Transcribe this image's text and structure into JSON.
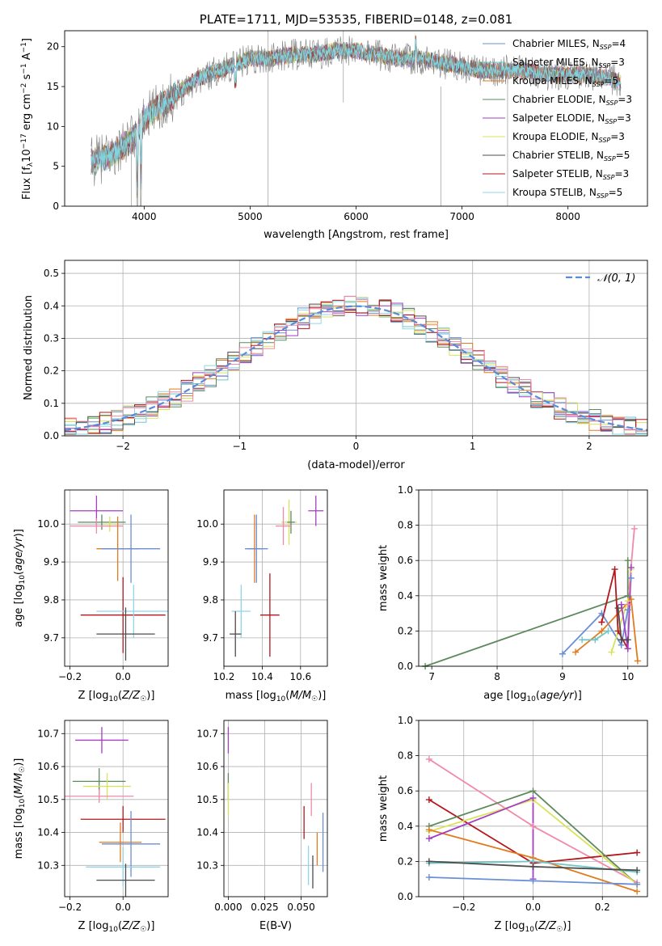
{
  "chart_data": [
    {
      "id": "spectrum",
      "type": "line",
      "title": "PLATE=1711, MJD=53535, FIBERID=0148, z=0.081",
      "xlabel": "wavelength [Angstrom, rest frame]",
      "ylabel": "Flux [f_λ10^-17 erg cm^-2 s^-1 A^-1]",
      "xlim": [
        3250,
        8750
      ],
      "ylim": [
        0,
        22
      ],
      "xticks": [
        4000,
        5000,
        6000,
        7000,
        8000
      ],
      "yticks": [
        0,
        5,
        10,
        15,
        20
      ],
      "grid": false,
      "legend_placement": "right",
      "data_color": "#808080",
      "model_color": "#7fd6e0",
      "continuum": {
        "x": [
          3500,
          3600,
          3700,
          3800,
          3900,
          4000,
          4100,
          4200,
          4300,
          4400,
          4500,
          4600,
          4800,
          5000,
          5200,
          5400,
          5600,
          5800,
          6000,
          6200,
          6400,
          6600,
          6800,
          7000,
          7200,
          7400,
          7600,
          7800,
          8000,
          8200,
          8400,
          8500
        ],
        "y": [
          5.5,
          6,
          6.5,
          7.5,
          8.5,
          11,
          12,
          13,
          14,
          15,
          16,
          16.5,
          17.5,
          18.5,
          18.5,
          19,
          19,
          19.5,
          19.5,
          19,
          18.5,
          18.5,
          18,
          17.5,
          17,
          17,
          17,
          16.5,
          16.5,
          16.5,
          16,
          15.5
        ]
      },
      "legend": [
        {
          "label": "Chabrier MILES, N",
          "sub": "SSP",
          "tail": "=4",
          "color": "#6a8fd6"
        },
        {
          "label": "Salpeter MILES, N",
          "sub": "SSP",
          "tail": "=3",
          "color": "#6fc7c7"
        },
        {
          "label": "Kroupa MILES, N",
          "sub": "SSP",
          "tail": "=5",
          "color": "#e07b1e"
        },
        {
          "label": "Chabrier ELODIE, N",
          "sub": "SSP",
          "tail": "=3",
          "color": "#5e8a5e"
        },
        {
          "label": "Salpeter ELODIE, N",
          "sub": "SSP",
          "tail": "=3",
          "color": "#a23fc2"
        },
        {
          "label": "Kroupa ELODIE, N",
          "sub": "SSP",
          "tail": "=3",
          "color": "#d9e35a"
        },
        {
          "label": "Chabrier STELIB, N",
          "sub": "SSP",
          "tail": "=5",
          "color": "#4d4d4d"
        },
        {
          "label": "Salpeter STELIB, N",
          "sub": "SSP",
          "tail": "=3",
          "color": "#b3171b"
        },
        {
          "label": "Kroupa STELIB, N",
          "sub": "SSP",
          "tail": "=5",
          "color": "#8fd5ea"
        }
      ]
    },
    {
      "id": "residuals",
      "type": "line",
      "xlabel": "(data-model)/error",
      "ylabel": "Normed distribution",
      "xlim": [
        -2.5,
        2.5
      ],
      "ylim": [
        0,
        0.54
      ],
      "xticks": [
        -2,
        -1,
        0,
        1,
        2
      ],
      "yticks": [
        0.0,
        0.1,
        0.2,
        0.3,
        0.4,
        0.5
      ],
      "grid": true,
      "legend_placement": "top-right",
      "gaussian_label": "𝒩(0, 1)",
      "gaussian_color": "#5b8bd8",
      "histogram_colors": [
        "#6a8fd6",
        "#6fc7c7",
        "#e07b1e",
        "#5e8a5e",
        "#a23fc2",
        "#d9e35a",
        "#4d4d4d",
        "#b3171b",
        "#8fd5ea",
        "#f08aa8"
      ]
    },
    {
      "id": "age-vs-Z",
      "type": "scatter",
      "xlabel": "Z [log10(Z/Z☉)]",
      "ylabel": "age  [log10(age/yr)]",
      "xlim": [
        -0.22,
        0.17
      ],
      "ylim": [
        9.625,
        10.09
      ],
      "xticks": [
        -0.2,
        0.0
      ],
      "yticks": [
        9.7,
        9.8,
        9.9,
        10.0
      ],
      "grid": true,
      "points": [
        {
          "x": -0.1,
          "y": 10.035,
          "xe": 0.1,
          "ye": 0.04,
          "color": "#a23fc2"
        },
        {
          "x": -0.08,
          "y": 10.005,
          "xe": 0.09,
          "ye": 0.02,
          "color": "#5e8a5e"
        },
        {
          "x": -0.05,
          "y": 10.0,
          "xe": 0.02,
          "ye": 0.02,
          "color": "#d9e35a"
        },
        {
          "x": -0.1,
          "y": 9.995,
          "xe": 0.1,
          "ye": 0.02,
          "color": "#f08aa8"
        },
        {
          "x": -0.02,
          "y": 9.935,
          "xe": 0.08,
          "ye": 0.085,
          "color": "#e07b1e"
        },
        {
          "x": 0.03,
          "y": 9.935,
          "xe": 0.11,
          "ye": 0.09,
          "color": "#6a8fd6"
        },
        {
          "x": 0.0,
          "y": 9.76,
          "xe": 0.16,
          "ye": 0.1,
          "color": "#b3171b"
        },
        {
          "x": 0.04,
          "y": 9.77,
          "xe": 0.14,
          "ye": 0.07,
          "color": "#8fd5ea"
        },
        {
          "x": 0.01,
          "y": 9.71,
          "xe": 0.11,
          "ye": 0.07,
          "color": "#4d4d4d"
        }
      ]
    },
    {
      "id": "age-vs-mass",
      "type": "scatter",
      "xlabel": "mass [log10(M/M☉)]",
      "ylabel": "",
      "xlim": [
        10.2,
        10.74
      ],
      "ylim": [
        9.625,
        10.09
      ],
      "xticks": [
        10.2,
        10.4,
        10.6
      ],
      "yticks": [
        9.7,
        9.8,
        9.9,
        10.0
      ],
      "grid": true,
      "points": [
        {
          "x": 10.68,
          "y": 10.035,
          "xe": 0.04,
          "ye": 0.04,
          "color": "#a23fc2"
        },
        {
          "x": 10.54,
          "y": 10.005,
          "xe": 0.04,
          "ye": 0.06,
          "color": "#d9e35a"
        },
        {
          "x": 10.55,
          "y": 10.005,
          "xe": 0.02,
          "ye": 0.03,
          "color": "#5e8a5e"
        },
        {
          "x": 10.51,
          "y": 9.995,
          "xe": 0.04,
          "ye": 0.05,
          "color": "#f08aa8"
        },
        {
          "x": 10.36,
          "y": 9.935,
          "xe": 0.04,
          "ye": 0.09,
          "color": "#e07b1e"
        },
        {
          "x": 10.37,
          "y": 9.935,
          "xe": 0.06,
          "ye": 0.09,
          "color": "#6a8fd6"
        },
        {
          "x": 10.44,
          "y": 9.76,
          "xe": 0.05,
          "ye": 0.11,
          "color": "#b3171b"
        },
        {
          "x": 10.29,
          "y": 9.77,
          "xe": 0.05,
          "ye": 0.07,
          "color": "#8fd5ea"
        },
        {
          "x": 10.26,
          "y": 9.71,
          "xe": 0.03,
          "ye": 0.06,
          "color": "#4d4d4d"
        }
      ]
    },
    {
      "id": "weight-vs-age",
      "type": "line",
      "xlabel": "age  [log10(age/yr)]",
      "ylabel": "mass weight",
      "xlim": [
        6.8,
        10.3
      ],
      "ylim": [
        0,
        1
      ],
      "xticks": [
        7,
        8,
        9,
        10
      ],
      "yticks": [
        0.0,
        0.2,
        0.4,
        0.6,
        0.8,
        1.0
      ],
      "grid": true,
      "series": [
        {
          "color": "#5e8a5e",
          "x": [
            6.9,
            10.0,
            10.0
          ],
          "y": [
            0.0,
            0.4,
            0.6
          ]
        },
        {
          "color": "#6a8fd6",
          "x": [
            9.0,
            9.6,
            9.9,
            10.0,
            10.05
          ],
          "y": [
            0.07,
            0.3,
            0.12,
            0.32,
            0.5
          ]
        },
        {
          "color": "#e07b1e",
          "x": [
            9.2,
            9.6,
            10.05,
            10.15
          ],
          "y": [
            0.08,
            0.2,
            0.38,
            0.03
          ]
        },
        {
          "color": "#6fc7c7",
          "x": [
            9.3,
            9.5,
            9.7
          ],
          "y": [
            0.15,
            0.15,
            0.2
          ]
        },
        {
          "color": "#b3171b",
          "x": [
            9.6,
            9.8,
            9.85,
            10.0
          ],
          "y": [
            0.25,
            0.55,
            0.2,
            0.1
          ]
        },
        {
          "color": "#d9e35a",
          "x": [
            9.75,
            10.0,
            10.05
          ],
          "y": [
            0.08,
            0.37,
            0.55
          ]
        },
        {
          "color": "#a23fc2",
          "x": [
            9.9,
            10.0,
            10.05
          ],
          "y": [
            0.35,
            0.1,
            0.56
          ]
        },
        {
          "color": "#4d4d4d",
          "x": [
            9.85,
            9.9,
            10.0
          ],
          "y": [
            0.33,
            0.15,
            0.15
          ]
        },
        {
          "color": "#f08aa8",
          "x": [
            10.0,
            10.1
          ],
          "y": [
            0.35,
            0.78
          ]
        }
      ]
    },
    {
      "id": "mass-vs-Z",
      "type": "scatter",
      "xlabel": "Z [log10(Z/Z☉)]",
      "ylabel": "mass [log10(M/M☉)]",
      "xlim": [
        -0.22,
        0.17
      ],
      "ylim": [
        10.205,
        10.74
      ],
      "xticks": [
        -0.2,
        0.0
      ],
      "yticks": [
        10.3,
        10.4,
        10.5,
        10.6,
        10.7
      ],
      "grid": true,
      "points": [
        {
          "x": -0.08,
          "y": 10.68,
          "xe": 0.1,
          "ye": 0.04,
          "color": "#a23fc2"
        },
        {
          "x": -0.09,
          "y": 10.555,
          "xe": 0.1,
          "ye": 0.04,
          "color": "#5e8a5e"
        },
        {
          "x": -0.06,
          "y": 10.54,
          "xe": 0.09,
          "ye": 0.04,
          "color": "#d9e35a"
        },
        {
          "x": -0.09,
          "y": 10.51,
          "xe": 0.13,
          "ye": 0.02,
          "color": "#f08aa8"
        },
        {
          "x": 0.0,
          "y": 10.44,
          "xe": 0.16,
          "ye": 0.04,
          "color": "#b3171b"
        },
        {
          "x": -0.01,
          "y": 10.37,
          "xe": 0.08,
          "ye": 0.06,
          "color": "#e07b1e"
        },
        {
          "x": 0.03,
          "y": 10.365,
          "xe": 0.11,
          "ye": 0.1,
          "color": "#6a8fd6"
        },
        {
          "x": 0.0,
          "y": 10.295,
          "xe": 0.14,
          "ye": 0.06,
          "color": "#8fd5ea"
        },
        {
          "x": 0.01,
          "y": 10.255,
          "xe": 0.11,
          "ye": 0.05,
          "color": "#4d4d4d"
        }
      ]
    },
    {
      "id": "mass-vs-EBV",
      "type": "scatter",
      "xlabel": "E(B-V)",
      "ylabel": "",
      "xlim": [
        -0.003,
        0.068
      ],
      "ylim": [
        10.205,
        10.74
      ],
      "xticks": [
        0.0,
        0.025,
        0.05
      ],
      "yticks": [
        10.3,
        10.4,
        10.5,
        10.6,
        10.7
      ],
      "grid": true,
      "points": [
        {
          "x": 0.0,
          "y": 10.68,
          "xe": 0,
          "ye": 0.04,
          "color": "#a23fc2"
        },
        {
          "x": 0.0,
          "y": 10.54,
          "xe": 0,
          "ye": 0.04,
          "color": "#5e8a5e"
        },
        {
          "x": 0.0,
          "y": 10.5,
          "xe": 0,
          "ye": 0.05,
          "color": "#d9e35a"
        },
        {
          "x": 0.057,
          "y": 10.5,
          "xe": 0,
          "ye": 0.05,
          "color": "#f08aa8"
        },
        {
          "x": 0.052,
          "y": 10.43,
          "xe": 0,
          "ye": 0.05,
          "color": "#b3171b"
        },
        {
          "x": 0.061,
          "y": 10.35,
          "xe": 0,
          "ye": 0.05,
          "color": "#e07b1e"
        },
        {
          "x": 0.065,
          "y": 10.37,
          "xe": 0,
          "ye": 0.09,
          "color": "#6a8fd6"
        },
        {
          "x": 0.055,
          "y": 10.3,
          "xe": 0,
          "ye": 0.06,
          "color": "#8fd5ea"
        },
        {
          "x": 0.058,
          "y": 10.28,
          "xe": 0,
          "ye": 0.05,
          "color": "#4d4d4d"
        }
      ]
    },
    {
      "id": "weight-vs-Z",
      "type": "line",
      "xlabel": "Z [log10(Z/Z☉)]",
      "ylabel": "mass weight",
      "xlim": [
        -0.33,
        0.33
      ],
      "ylim": [
        0,
        1
      ],
      "xticks": [
        -0.2,
        0.0,
        0.2
      ],
      "yticks": [
        0.0,
        0.2,
        0.4,
        0.6,
        0.8,
        1.0
      ],
      "grid": true,
      "series": [
        {
          "color": "#f08aa8",
          "x": [
            -0.3,
            0.0,
            0.3
          ],
          "y": [
            0.78,
            0.4,
            0.08
          ]
        },
        {
          "color": "#b3171b",
          "x": [
            -0.3,
            0.0,
            0.3
          ],
          "y": [
            0.55,
            0.19,
            0.25
          ]
        },
        {
          "color": "#5e8a5e",
          "x": [
            -0.3,
            0.0,
            0.3
          ],
          "y": [
            0.4,
            0.6,
            0.07
          ]
        },
        {
          "color": "#d9e35a",
          "x": [
            -0.3,
            0.0,
            0.3
          ],
          "y": [
            0.37,
            0.55,
            0.07
          ]
        },
        {
          "color": "#e07b1e",
          "x": [
            -0.3,
            0.0,
            0.3
          ],
          "y": [
            0.38,
            0.22,
            0.03
          ]
        },
        {
          "color": "#a23fc2",
          "x": [
            -0.3,
            0.0,
            0.0
          ],
          "y": [
            0.33,
            0.56,
            0.1
          ]
        },
        {
          "color": "#6a8fd6",
          "x": [
            -0.3,
            0.0,
            0.3
          ],
          "y": [
            0.11,
            0.09,
            0.07
          ]
        },
        {
          "color": "#6fc7c7",
          "x": [
            -0.3,
            0.0,
            0.3
          ],
          "y": [
            0.19,
            0.2,
            0.14
          ]
        },
        {
          "color": "#4d4d4d",
          "x": [
            -0.3,
            0.0,
            0.3
          ],
          "y": [
            0.2,
            0.17,
            0.15
          ]
        }
      ]
    }
  ]
}
